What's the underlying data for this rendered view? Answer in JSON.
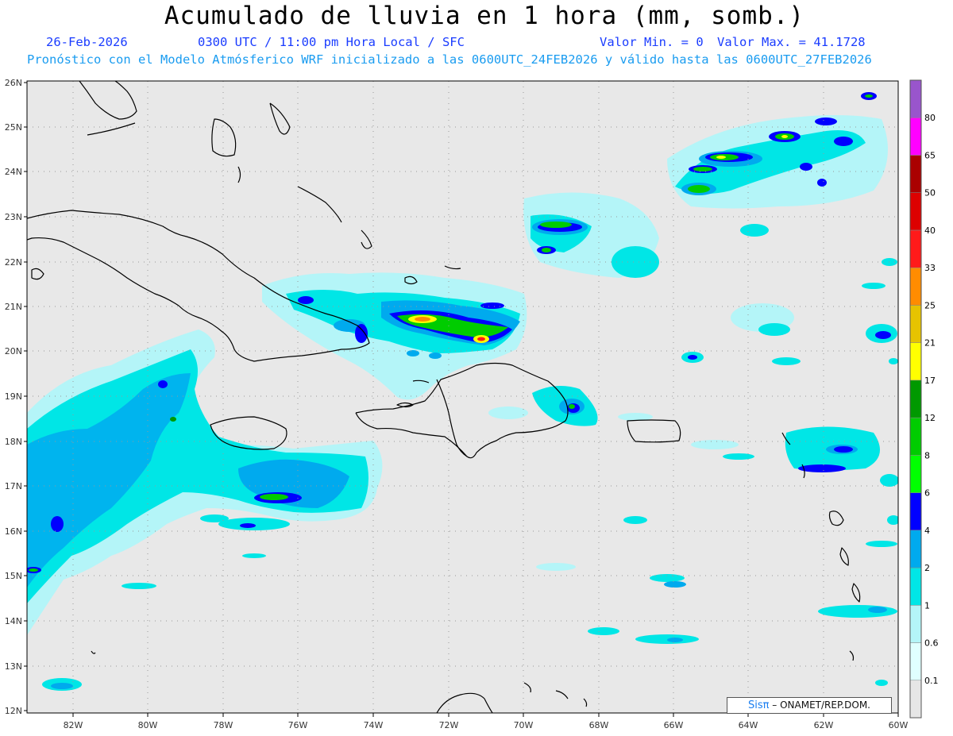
{
  "header": {
    "title": "Acumulado de lluvia en 1 hora (mm, somb.)",
    "date": "26-Feb-2026",
    "time_label": "0300 UTC / 11:00 pm Hora Local / SFC",
    "min_label": "Valor Min. = 0",
    "max_label": "Valor Max. = 41.1728",
    "model_info": "Pronóstico con el Modelo Atmósferico WRF inicializado a las 0600UTC_24FEB2026 y válido hasta las  0600UTC_27FEB2026"
  },
  "map": {
    "lat_labels": [
      "26N",
      "25N",
      "24N",
      "23N",
      "22N",
      "21N",
      "20N",
      "19N",
      "18N",
      "17N",
      "16N",
      "15N",
      "14N",
      "13N",
      "12N"
    ],
    "lon_labels": [
      "82W",
      "80W",
      "78W",
      "76W",
      "74W",
      "72W",
      "70W",
      "68W",
      "66W",
      "64W",
      "62W",
      "60W"
    ],
    "lat_range": [
      12,
      26
    ],
    "lon_range": [
      -83.2,
      -60
    ],
    "background_color": "#e8e8e8",
    "coastline_color": "#000000",
    "gridline_color": "#999999"
  },
  "legend": {
    "labels": [
      "0.1",
      "0.6",
      "1",
      "2",
      "4",
      "6",
      "8",
      "12",
      "17",
      "21",
      "25",
      "33",
      "40",
      "50",
      "65",
      "80"
    ],
    "colors": [
      "#e6e6e6",
      "#e0ffff",
      "#b4f5f8",
      "#00e6e6",
      "#00aaee",
      "#0000ff",
      "#00ff00",
      "#00cc00",
      "#009900",
      "#ffff00",
      "#e6c300",
      "#ff8c00",
      "#ff1a1a",
      "#dd0000",
      "#aa0000",
      "#ff00ff",
      "#9955cc"
    ]
  },
  "credit": {
    "brand": "Sisπ",
    "agency": "– ONAMET/REP.DOM."
  }
}
